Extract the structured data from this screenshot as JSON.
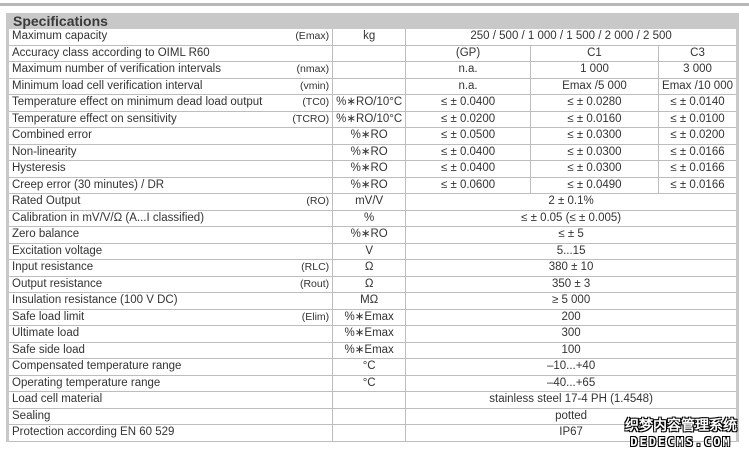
{
  "title": "Specifications",
  "rows": [
    {
      "label": "Maximum capacity",
      "sym": "(Emax)",
      "unit": "kg",
      "span": "250 / 500 / 1 000 / 1 500 / 2 000 / 2 500"
    },
    {
      "label": "Accuracy class according to OIML R60",
      "sym": "",
      "unit": "",
      "v": [
        "(GP)",
        "C1",
        "C3"
      ]
    },
    {
      "label": "Maximum number of verification intervals",
      "sym": "(nmax)",
      "unit": "",
      "v": [
        "n.a.",
        "1 000",
        "3 000"
      ]
    },
    {
      "label": "Minimum load cell verification interval",
      "sym": "(vmin)",
      "unit": "",
      "v": [
        "n.a.",
        "Emax /5 000",
        "Emax /10 000"
      ]
    },
    {
      "label": "Temperature effect on minimum dead load output",
      "sym": "(TC0)",
      "unit": "%∗RO/10°C",
      "v": [
        "≤ ± 0.0400",
        "≤ ± 0.0280",
        "≤ ± 0.0140"
      ]
    },
    {
      "label": "Temperature effect on sensitivity",
      "sym": "(TCRO)",
      "unit": "%∗RO/10°C",
      "v": [
        "≤ ± 0.0200",
        "≤ ± 0.0160",
        "≤ ± 0.0100"
      ]
    },
    {
      "label": "Combined error",
      "sym": "",
      "unit": "%∗RO",
      "v": [
        "≤ ± 0.0500",
        "≤ ± 0.0300",
        "≤ ± 0.0200"
      ]
    },
    {
      "label": "Non-linearity",
      "sym": "",
      "unit": "%∗RO",
      "v": [
        "≤ ± 0.0400",
        "≤ ± 0.0300",
        "≤ ± 0.0166"
      ]
    },
    {
      "label": "Hysteresis",
      "sym": "",
      "unit": "%∗RO",
      "v": [
        "≤ ± 0.0400",
        "≤ ± 0.0300",
        "≤ ± 0.0166"
      ]
    },
    {
      "label": "Creep error (30 minutes) / DR",
      "sym": "",
      "unit": "%∗RO",
      "v": [
        "≤ ± 0.0600",
        "≤ ± 0.0490",
        "≤ ± 0.0166"
      ]
    },
    {
      "label": "Rated Output",
      "sym": "(RO)",
      "unit": "mV/V",
      "span": "2 ± 0.1%"
    },
    {
      "label": "Calibration in mV/V/Ω (A...I classified)",
      "sym": "",
      "unit": "%",
      "span": "≤ ± 0.05 (≤ ± 0.005)"
    },
    {
      "label": "Zero balance",
      "sym": "",
      "unit": "%∗RO",
      "span": "≤ ± 5"
    },
    {
      "label": "Excitation voltage",
      "sym": "",
      "unit": "V",
      "span": "5...15"
    },
    {
      "label": "Input resistance",
      "sym": "(RLC)",
      "unit": "Ω",
      "span": "380 ± 10"
    },
    {
      "label": "Output resistance",
      "sym": "(Rout)",
      "unit": "Ω",
      "span": "350 ± 3"
    },
    {
      "label": "Insulation resistance (100 V DC)",
      "sym": "",
      "unit": "MΩ",
      "span": "≥ 5 000"
    },
    {
      "label": "Safe load limit",
      "sym": "(Elim)",
      "unit": "%∗Emax",
      "span": "200"
    },
    {
      "label": "Ultimate load",
      "sym": "",
      "unit": "%∗Emax",
      "span": "300"
    },
    {
      "label": "Safe side load",
      "sym": "",
      "unit": "%∗Emax",
      "span": "100"
    },
    {
      "label": "Compensated temperature range",
      "sym": "",
      "unit": "°C",
      "span": "–10...+40"
    },
    {
      "label": "Operating temperature range",
      "sym": "",
      "unit": "°C",
      "span": "–40...+65"
    },
    {
      "label": "Load cell material",
      "sym": "",
      "unit": "",
      "span": "stainless steel 17-4 PH (1.4548)"
    },
    {
      "label": "Sealing",
      "sym": "",
      "unit": "",
      "span": "potted"
    },
    {
      "label": "Protection according EN 60 529",
      "sym": "",
      "unit": "",
      "span": "IP67"
    }
  ],
  "watermark": {
    "line1": "织梦内容管理系统",
    "line2": "DEDECMS.COM"
  }
}
